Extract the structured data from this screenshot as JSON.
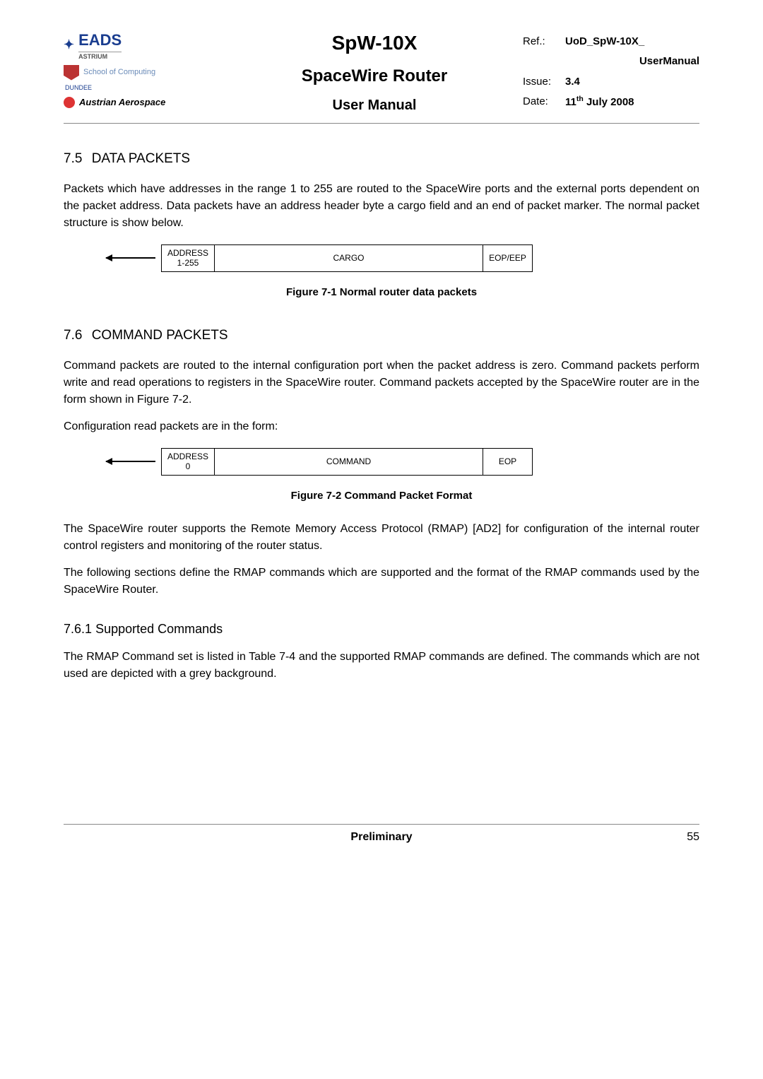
{
  "header": {
    "logos": {
      "eads": "EADS",
      "eads_sub": "ASTRIUM",
      "school": "School of Computing",
      "dundee": "DUNDEE",
      "austrian": "Austrian Aerospace"
    },
    "title1": "SpW-10X",
    "title2": "SpaceWire Router",
    "title3": "User Manual",
    "ref_label": "Ref.:",
    "ref_value": "UoD_SpW-10X_",
    "ref_value2": "UserManual",
    "issue_label": "Issue:",
    "issue_value": "3.4",
    "date_label": "Date:",
    "date_value": "11",
    "date_suffix": "th",
    "date_rest": " July 2008"
  },
  "s75": {
    "num": "7.5",
    "title": "DATA PACKETS",
    "para": "Packets which have addresses in the range 1 to 255 are routed to the SpaceWire ports and the external ports dependent on the packet address.  Data packets have an address header byte a cargo field and an end of packet marker.  The normal packet structure is show below.",
    "pkt_addr": "ADDRESS",
    "pkt_addr_range": "1-255",
    "pkt_cargo": "CARGO",
    "pkt_eop": "EOP/EEP",
    "caption": "Figure 7-1 Normal router data packets"
  },
  "s76": {
    "num": "7.6",
    "title": "COMMAND PACKETS",
    "para1": "Command packets are routed to the internal configuration port when the packet address is zero. Command packets perform write and read operations to registers in the SpaceWire router. Command packets accepted by the SpaceWire router are in the form shown in Figure 7-2.",
    "para2": "Configuration read packets are in the form:",
    "pkt_addr": "ADDRESS",
    "pkt_addr_range": "0",
    "pkt_cmd": "COMMAND",
    "pkt_eop": "EOP",
    "caption": "Figure 7-2 Command Packet Format",
    "para3": "The SpaceWire router supports the Remote Memory Access Protocol (RMAP) [AD2] for configuration of the internal router control registers and monitoring of the router status.",
    "para4": "The following sections define the RMAP commands which are supported and the format of the RMAP commands used by the SpaceWire Router."
  },
  "s761": {
    "num": "7.6.1",
    "title": "Supported Commands",
    "para": "The RMAP Command set is listed in Table 7-4 and the supported RMAP commands are defined. The commands which are not used are depicted with a grey background."
  },
  "footer": {
    "center": "Preliminary",
    "page": "55"
  }
}
